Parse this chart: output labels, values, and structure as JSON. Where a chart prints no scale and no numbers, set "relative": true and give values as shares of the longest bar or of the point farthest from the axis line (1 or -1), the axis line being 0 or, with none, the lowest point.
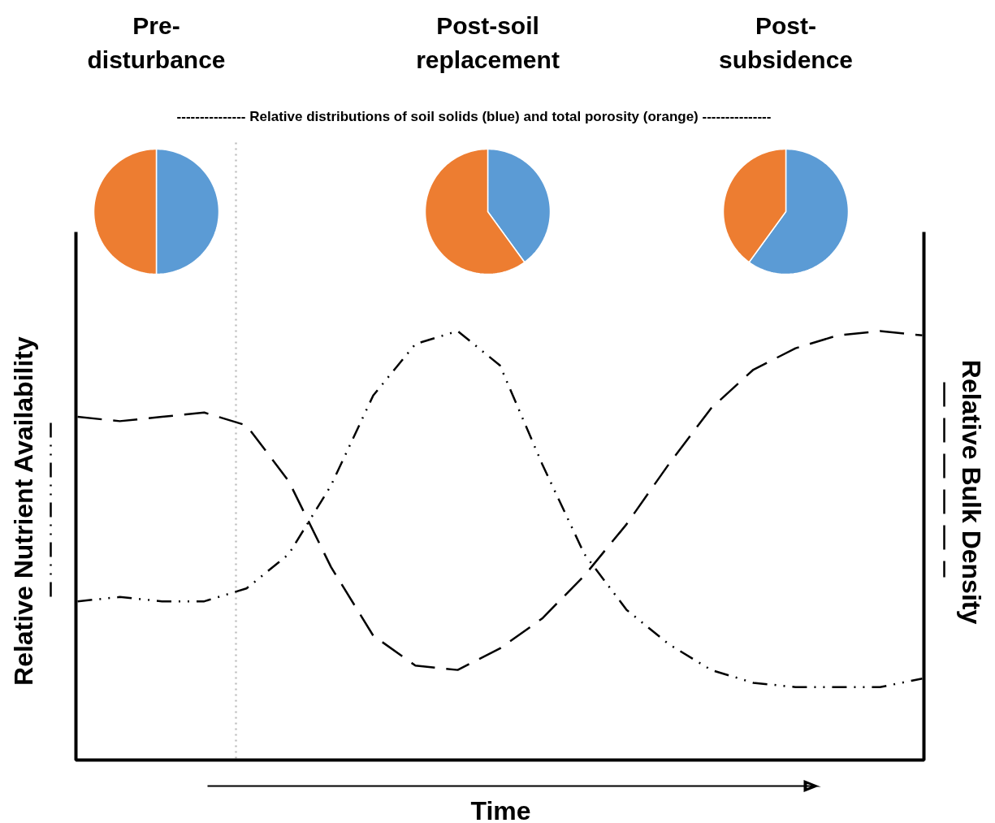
{
  "chart_data": [
    {
      "type": "pie",
      "title": "Pre-disturbance",
      "categories": [
        null,
        null
      ],
      "values": [
        50,
        50
      ],
      "colors": [
        "#5b9bd5",
        "#ed7d31"
      ]
    },
    {
      "type": "pie",
      "title": "Post-soil replacement",
      "categories": [
        null,
        null
      ],
      "values": [
        40,
        60
      ],
      "colors": [
        "#5b9bd5",
        "#ed7d31"
      ]
    },
    {
      "type": "pie",
      "title": "Post-subsidence",
      "categories": [
        null,
        null
      ],
      "values": [
        60,
        40
      ],
      "colors": [
        "#5b9bd5",
        "#ed7d31"
      ]
    },
    {
      "type": "other",
      "annotations": [
        "--------------- Relative distributions of soil solids (blue) and total porosity (orange) ---------------"
      ]
    },
    {
      "type": "line",
      "relative": true,
      "xlabel": "Time",
      "ylabel": "Relative Nutrient Availability",
      "y2label": "Relative Bulk Density",
      "categories": [
        null,
        null,
        null,
        null,
        null,
        null,
        null,
        null,
        null,
        null,
        null,
        null,
        null,
        null,
        null,
        null,
        null,
        null,
        null,
        null,
        null
      ],
      "series": [
        {
          "color": "#000000",
          "line_style": "dashdot",
          "values": [
            0.37,
            0.38,
            0.37,
            0.37,
            0.4,
            0.48,
            0.64,
            0.85,
            0.97,
            1,
            0.92,
            0.69,
            0.48,
            0.35,
            0.27,
            0.21,
            0.18,
            0.17,
            0.17,
            0.17,
            0.19
          ]
        },
        {
          "color": "#000000",
          "line_style": "dashed",
          "values": [
            0.8,
            0.79,
            0.8,
            0.81,
            0.78,
            0.65,
            0.45,
            0.29,
            0.22,
            0.21,
            0.26,
            0.33,
            0.43,
            0.55,
            0.69,
            0.82,
            0.91,
            0.96,
            0.99,
            1,
            0.99
          ]
        }
      ]
    }
  ]
}
